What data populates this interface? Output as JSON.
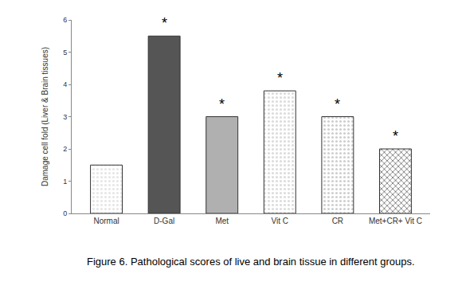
{
  "chart_data": {
    "type": "bar",
    "caption": "Figure 6. Pathological scores of live and brain tissue in different groups.",
    "y_label": "Damage cell fold (Liver & Brain tissues)",
    "categories": [
      "Normal",
      "D-Gal",
      "Met",
      "Vit C",
      "CR",
      "Met+CR+ Vit C"
    ],
    "values": [
      1.5,
      5.5,
      3.0,
      3.8,
      3.0,
      2.0
    ],
    "colors": [
      "#e6e6e6",
      "#555555",
      "#b0b0b0",
      "#dcdcdc",
      "#cfcfcf",
      "#6e6e6e"
    ],
    "ylim": [
      0,
      6
    ],
    "yticks": [
      0,
      1,
      2,
      3,
      4,
      5,
      6
    ],
    "grid": false,
    "annotations": [
      {
        "category": "D-Gal",
        "text": "*"
      },
      {
        "category": "Met",
        "text": "*"
      },
      {
        "category": "Vit C",
        "text": "*"
      },
      {
        "category": "CR",
        "text": "*"
      },
      {
        "category": "Met+CR+ Vit C",
        "text": "*"
      }
    ]
  }
}
